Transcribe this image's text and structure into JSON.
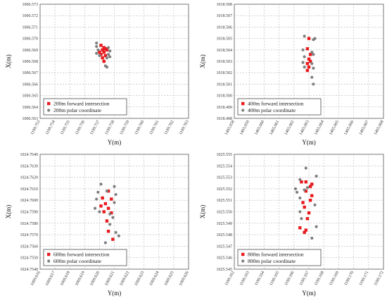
{
  "chart_data": [
    {
      "type": "scatter",
      "xlabel": "Y(m)",
      "ylabel": "X(m)",
      "xlim": [
        1199.753,
        1199.763
      ],
      "ylim": [
        1006.563,
        1006.573
      ],
      "x_ticks": [
        "1199.753",
        "1199.754",
        "1199.755",
        "1199.756",
        "1199.757",
        "1199.758",
        "1199.759",
        "1199.760",
        "1199.761",
        "1199.762",
        "1199.763"
      ],
      "y_ticks": [
        "1006.573",
        "1006.572",
        "1006.571",
        "1006.570",
        "1006.569",
        "1006.568",
        "1006.567",
        "1006.566",
        "1006.565",
        "1006.564",
        "1006.563"
      ],
      "legend_position": "bottom-left",
      "series": [
        {
          "name": "200m forward intersection",
          "marker": "square",
          "color": "#e8191c",
          "points": [
            [
              1199.7571,
              1006.5694
            ],
            [
              1199.7573,
              1006.5692
            ],
            [
              1199.7572,
              1006.569
            ],
            [
              1199.7574,
              1006.5691
            ],
            [
              1199.757,
              1006.5688
            ],
            [
              1199.7573,
              1006.5688
            ],
            [
              1199.7575,
              1006.569
            ],
            [
              1199.7571,
              1006.5686
            ],
            [
              1199.7574,
              1006.5685
            ],
            [
              1199.7572,
              1006.5683
            ],
            [
              1199.7573,
              1006.568
            ]
          ]
        },
        {
          "name": "200m polar coordinate",
          "marker": "circle",
          "color": "#7f7f7f",
          "points": [
            [
              1199.7568,
              1006.5696
            ],
            [
              1199.7568,
              1006.5693
            ],
            [
              1199.7569,
              1006.569
            ],
            [
              1199.7568,
              1006.5687
            ],
            [
              1199.757,
              1006.5685
            ],
            [
              1199.7576,
              1006.5692
            ],
            [
              1199.7577,
              1006.5689
            ],
            [
              1199.7576,
              1006.5686
            ],
            [
              1199.7577,
              1006.5684
            ],
            [
              1199.7575,
              1006.5683
            ],
            [
              1199.7574,
              1006.5676
            ],
            [
              1199.7575,
              1006.5675
            ]
          ]
        }
      ]
    },
    {
      "type": "scatter",
      "xlabel": "Y(m)",
      "ylabel": "X(m)",
      "xlim": [
        1405.058,
        1405.068
      ],
      "ylim": [
        1018.498,
        1018.508
      ],
      "x_ticks": [
        "1405.058",
        "1405.059",
        "1405.060",
        "1405.061",
        "1405.062",
        "1405.063",
        "1405.064",
        "1405.065",
        "1405.066",
        "1405.067",
        "1405.068"
      ],
      "y_ticks": [
        "1018.508",
        "1018.507",
        "1018.506",
        "1018.505",
        "1018.504",
        "1018.503",
        "1018.502",
        "1018.501",
        "1018.500",
        "1018.499",
        "1018.498"
      ],
      "legend_position": "bottom-left",
      "series": [
        {
          "name": "400m forward intersection",
          "marker": "square",
          "color": "#e8191c",
          "points": [
            [
              1405.063,
              1018.505
            ],
            [
              1405.0629,
              1018.5041
            ],
            [
              1405.0631,
              1018.5036
            ],
            [
              1405.063,
              1018.5032
            ],
            [
              1405.0631,
              1018.503
            ],
            [
              1405.0629,
              1018.5028
            ],
            [
              1405.063,
              1018.5025
            ],
            [
              1405.0629,
              1018.5022
            ]
          ]
        },
        {
          "name": "400m polar coordinate",
          "marker": "circle",
          "color": "#7f7f7f",
          "points": [
            [
              1405.0627,
              1018.5052
            ],
            [
              1405.0633,
              1018.5049
            ],
            [
              1405.0634,
              1018.505
            ],
            [
              1405.0626,
              1018.504
            ],
            [
              1405.0627,
              1018.5034
            ],
            [
              1405.0632,
              1018.5038
            ],
            [
              1405.0633,
              1018.5036
            ],
            [
              1405.0626,
              1018.5029
            ],
            [
              1405.0627,
              1018.5025
            ],
            [
              1405.0632,
              1018.5028
            ],
            [
              1405.0633,
              1018.5024
            ],
            [
              1405.0632,
              1018.5016
            ],
            [
              1405.0633,
              1018.501
            ]
          ]
        }
      ]
    },
    {
      "type": "scatter",
      "xlabel": "Y(m)",
      "ylabel": "X(m)",
      "xlim": [
        1009.616,
        1009.626
      ],
      "ylim": [
        1024.754,
        1024.764
      ],
      "x_ticks": [
        "1009.616",
        "1009.617",
        "1009.618",
        "1009.619",
        "1009.620",
        "1009.621",
        "1009.622",
        "1009.623",
        "1009.624",
        "1009.625",
        "1009.626"
      ],
      "y_ticks": [
        "1024.7640",
        "1024.7630",
        "1024.7620",
        "1024.7610",
        "1024.7600",
        "1024.7590",
        "1024.7580",
        "1024.7570",
        "1024.7560",
        "1024.7550",
        "1024.7540"
      ],
      "legend_position": "bottom-left",
      "series": [
        {
          "name": "600m forward intersection",
          "marker": "square",
          "color": "#e8191c",
          "points": [
            [
              1009.6206,
              1024.7608
            ],
            [
              1009.6202,
              1024.7602
            ],
            [
              1009.6208,
              1024.7601
            ],
            [
              1009.6204,
              1024.7597
            ],
            [
              1009.6201,
              1024.7595
            ],
            [
              1009.6206,
              1024.7593
            ],
            [
              1009.6203,
              1024.759
            ],
            [
              1009.6208,
              1024.7589
            ],
            [
              1009.6205,
              1024.7582
            ],
            [
              1009.6206,
              1024.7573
            ],
            [
              1009.6209,
              1024.7566
            ]
          ]
        },
        {
          "name": "600m polar coordinate",
          "marker": "circle",
          "color": "#7f7f7f",
          "points": [
            [
              1009.6201,
              1024.7614
            ],
            [
              1009.6205,
              1024.7608
            ],
            [
              1009.621,
              1024.7612
            ],
            [
              1009.6199,
              1024.7607
            ],
            [
              1009.6211,
              1024.7605
            ],
            [
              1009.6198,
              1024.7601
            ],
            [
              1009.621,
              1024.7598
            ],
            [
              1009.6197,
              1024.7593
            ],
            [
              1009.62,
              1024.759
            ],
            [
              1009.6207,
              1024.7588
            ],
            [
              1009.6209,
              1024.7585
            ],
            [
              1009.6207,
              1024.7579
            ],
            [
              1009.6211,
              1024.7572
            ],
            [
              1009.6213,
              1024.7569
            ],
            [
              1009.6204,
              1024.7563
            ]
          ]
        }
      ]
    },
    {
      "type": "scatter",
      "xlabel": "Y(m)",
      "ylabel": "X(m)",
      "xlim": [
        1199.162,
        1199.172
      ],
      "ylim": [
        1025.545,
        1025.555
      ],
      "x_ticks": [
        "1199.162",
        "1199.163",
        "1199.164",
        "1199.165",
        "1199.166",
        "1199.167",
        "1199.168",
        "1199.169",
        "1199.170",
        "1199.171",
        "1199.172"
      ],
      "y_ticks": [
        "1025.555",
        "1025.554",
        "1025.553",
        "1025.552",
        "1025.551",
        "1025.550",
        "1025.549",
        "1025.548",
        "1025.547",
        "1025.546",
        "1025.545"
      ],
      "legend_position": "bottom-left",
      "series": [
        {
          "name": "800m forward intersection",
          "marker": "square",
          "color": "#e8191c",
          "points": [
            [
              1199.1665,
              1025.5526
            ],
            [
              1199.1668,
              1025.5526
            ],
            [
              1199.1672,
              1025.5524
            ],
            [
              1199.1671,
              1025.5522
            ],
            [
              1199.1668,
              1025.5518
            ],
            [
              1199.1672,
              1025.5514
            ],
            [
              1199.1671,
              1025.551
            ],
            [
              1199.1666,
              1025.5508
            ],
            [
              1199.1667,
              1025.5504
            ],
            [
              1199.167,
              1025.5499
            ],
            [
              1199.1669,
              1025.5494
            ],
            [
              1199.1664,
              1025.5486
            ],
            [
              1199.1668,
              1025.5484
            ],
            [
              1199.1667,
              1025.5482
            ]
          ]
        },
        {
          "name": "800m polar coordinate",
          "marker": "circle",
          "color": "#7f7f7f",
          "points": [
            [
              1199.1668,
              1025.5538
            ],
            [
              1199.1675,
              1025.5531
            ],
            [
              1199.1664,
              1025.5528
            ],
            [
              1199.1661,
              1025.552
            ],
            [
              1199.1662,
              1025.5517
            ],
            [
              1199.1667,
              1025.5519
            ],
            [
              1199.1669,
              1025.5521
            ],
            [
              1199.1664,
              1025.5512
            ],
            [
              1199.1674,
              1025.5506
            ],
            [
              1199.1664,
              1025.55
            ],
            [
              1199.1665,
              1025.5494
            ],
            [
              1199.1675,
              1025.5487
            ],
            [
              1199.1672,
              1025.5477
            ],
            [
              1199.167,
              1025.5463
            ],
            [
              1199.167,
              1025.5456
            ]
          ]
        }
      ]
    }
  ]
}
